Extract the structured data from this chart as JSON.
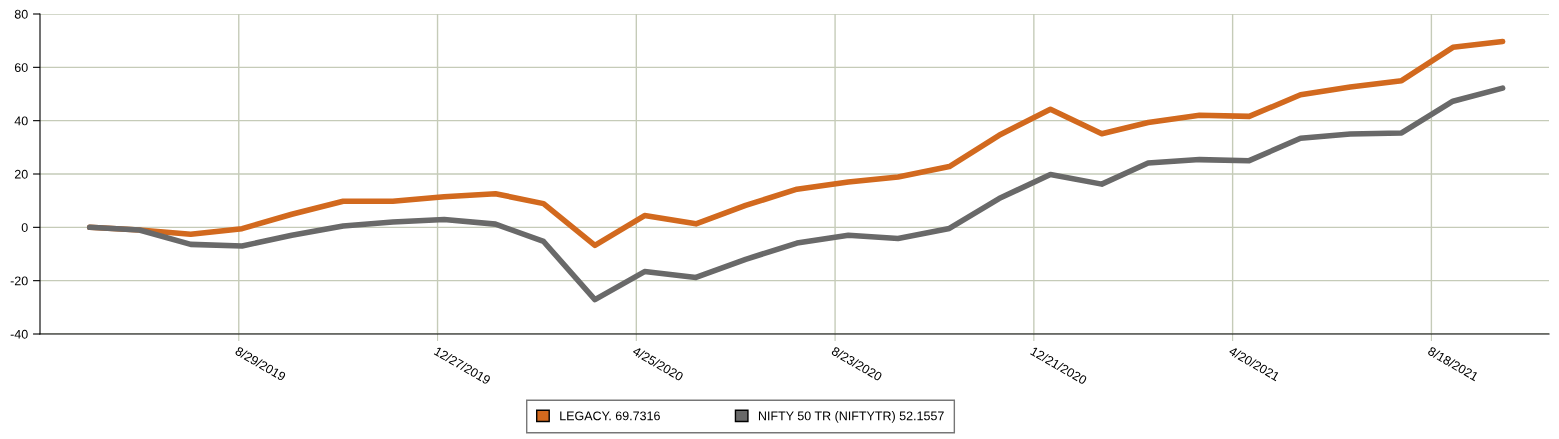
{
  "chart_data": {
    "type": "line",
    "x": [
      "2019-05-31",
      "2019-06-30",
      "2019-07-31",
      "2019-08-31",
      "2019-09-30",
      "2019-10-31",
      "2019-11-30",
      "2019-12-31",
      "2020-01-31",
      "2020-02-29",
      "2020-03-31",
      "2020-04-30",
      "2020-05-31",
      "2020-06-30",
      "2020-07-31",
      "2020-08-31",
      "2020-09-30",
      "2020-10-31",
      "2020-11-30",
      "2020-12-31",
      "2021-01-31",
      "2021-02-28",
      "2021-03-31",
      "2021-04-30",
      "2021-05-31",
      "2021-06-30",
      "2021-07-31",
      "2021-08-31",
      "2021-09-30"
    ],
    "series": [
      {
        "name": "LEGACY. 69.7316",
        "color": "#d2691e",
        "values": [
          0,
          -1,
          -2.6,
          -0.5,
          4.9,
          9.8,
          9.8,
          11.5,
          12.6,
          8.9,
          -6.8,
          4.4,
          1.3,
          8.2,
          14.3,
          17,
          18.9,
          22.8,
          34.5,
          44.3,
          35.1,
          39.3,
          42,
          41.6,
          49.7,
          52.6,
          55,
          67.5,
          69.7
        ]
      },
      {
        "name": "NIFTY 50 TR (NIFTYTR) 52.1557",
        "color": "#696969",
        "values": [
          0,
          -1,
          -6.4,
          -7,
          -3,
          0.5,
          2,
          2.9,
          1.2,
          -5.3,
          -27.1,
          -16.6,
          -18.8,
          -12,
          -5.9,
          -3,
          -4.2,
          -0.4,
          10.8,
          19.8,
          16.2,
          24.1,
          25.4,
          25,
          33.4,
          35,
          35.4,
          47.3,
          52.2
        ]
      }
    ],
    "xlim": [
      "2019-05-01",
      "2021-10-28"
    ],
    "xticks": [
      {
        "value": "2019-08-29",
        "label": "8/29/2019"
      },
      {
        "value": "2019-12-27",
        "label": "12/27/2019"
      },
      {
        "value": "2020-04-25",
        "label": "4/25/2020"
      },
      {
        "value": "2020-08-23",
        "label": "8/23/2020"
      },
      {
        "value": "2020-12-21",
        "label": "12/21/2020"
      },
      {
        "value": "2021-04-20",
        "label": "4/20/2021"
      },
      {
        "value": "2021-08-18",
        "label": "8/18/2021"
      }
    ],
    "ylim": [
      -40,
      80
    ],
    "yticks": [
      -40,
      -20,
      0,
      20,
      40,
      60,
      80
    ],
    "grid": true,
    "legend": "bottom",
    "marker": "none",
    "line_style": "solid"
  }
}
